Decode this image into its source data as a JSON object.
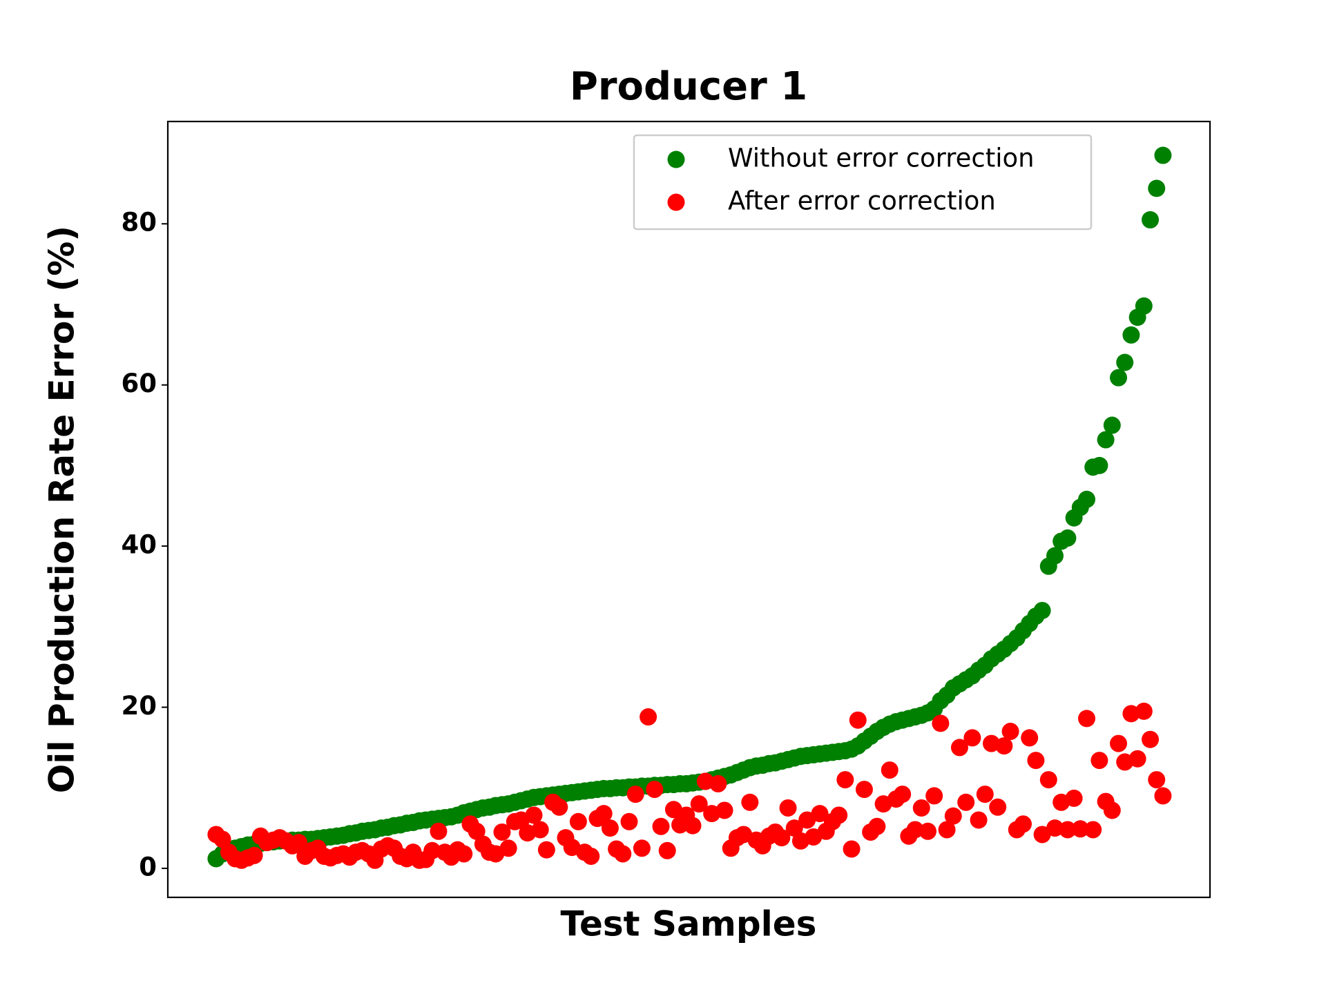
{
  "chart_data": {
    "type": "scatter",
    "title": "Producer 1",
    "x_label": "Test Samples",
    "y_label": "Oil Production Rate Error (%)",
    "x": [
      0,
      1,
      2,
      3,
      4,
      5,
      6,
      7,
      8,
      9,
      10,
      11,
      12,
      13,
      14,
      15,
      16,
      17,
      18,
      19,
      20,
      21,
      22,
      23,
      24,
      25,
      26,
      27,
      28,
      29,
      30,
      31,
      32,
      33,
      34,
      35,
      36,
      37,
      38,
      39,
      40,
      41,
      42,
      43,
      44,
      45,
      46,
      47,
      48,
      49,
      50,
      51,
      52,
      53,
      54,
      55,
      56,
      57,
      58,
      59,
      60,
      61,
      62,
      63,
      64,
      65,
      66,
      67,
      68,
      69,
      70,
      71,
      72,
      73,
      74,
      75,
      76,
      77,
      78,
      79,
      80,
      81,
      82,
      83,
      84,
      85,
      86,
      87,
      88,
      89,
      90,
      91,
      92,
      93,
      94,
      95,
      96,
      97,
      98,
      99,
      100,
      101,
      102,
      103,
      104,
      105,
      106,
      107,
      108,
      109,
      110,
      111,
      112,
      113,
      114,
      115,
      116,
      117,
      118,
      119,
      120,
      121,
      122,
      123,
      124,
      125,
      126,
      127,
      128,
      129,
      130,
      131,
      132,
      133,
      134,
      135,
      136,
      137,
      138,
      139,
      140,
      141,
      142,
      143,
      144,
      145,
      146,
      147,
      148,
      149
    ],
    "series": [
      {
        "name": "Without error correction",
        "color": "#008000",
        "values": [
          1.2,
          1.8,
          2.2,
          2.5,
          2.7,
          2.9,
          3.0,
          3.1,
          3.2,
          3.3,
          3.4,
          3.4,
          3.5,
          3.5,
          3.6,
          3.6,
          3.7,
          3.8,
          3.9,
          4.0,
          4.1,
          4.3,
          4.4,
          4.6,
          4.7,
          4.8,
          5.0,
          5.1,
          5.3,
          5.4,
          5.6,
          5.7,
          5.9,
          6.0,
          6.1,
          6.2,
          6.3,
          6.4,
          6.6,
          6.9,
          7.1,
          7.3,
          7.5,
          7.6,
          7.8,
          7.9,
          8.0,
          8.2,
          8.4,
          8.6,
          8.8,
          8.9,
          9.0,
          9.1,
          9.2,
          9.3,
          9.4,
          9.5,
          9.6,
          9.7,
          9.8,
          9.9,
          9.9,
          10.0,
          10.0,
          10.1,
          10.1,
          10.2,
          10.2,
          10.3,
          10.3,
          10.4,
          10.4,
          10.5,
          10.5,
          10.6,
          10.7,
          10.8,
          11.0,
          11.2,
          11.4,
          11.6,
          11.9,
          12.2,
          12.5,
          12.7,
          12.8,
          13.0,
          13.1,
          13.3,
          13.5,
          13.7,
          13.9,
          14.0,
          14.1,
          14.2,
          14.3,
          14.4,
          14.5,
          14.6,
          14.8,
          15.2,
          15.8,
          16.4,
          17.0,
          17.5,
          17.9,
          18.2,
          18.4,
          18.6,
          18.8,
          19.0,
          19.3,
          19.8,
          20.8,
          21.5,
          22.4,
          22.9,
          23.4,
          23.9,
          24.6,
          25.2,
          26.0,
          26.6,
          27.2,
          27.9,
          28.6,
          29.5,
          30.4,
          31.3,
          32.0,
          37.5,
          38.8,
          40.6,
          41.0,
          43.5,
          44.8,
          45.8,
          49.8,
          50.0,
          53.2,
          55.0,
          60.9,
          62.8,
          66.2,
          68.4,
          69.8,
          80.5,
          84.4,
          88.5
        ]
      },
      {
        "name": "After error correction",
        "color": "#ff0000",
        "values": [
          4.2,
          3.6,
          2.0,
          1.2,
          1.0,
          1.3,
          1.6,
          4.0,
          3.2,
          3.5,
          3.8,
          3.4,
          2.8,
          3.2,
          1.5,
          2.2,
          2.5,
          1.5,
          1.3,
          1.6,
          1.8,
          1.4,
          2.0,
          2.2,
          1.8,
          1.0,
          2.4,
          2.8,
          2.5,
          1.5,
          1.2,
          2.0,
          1.0,
          1.1,
          2.2,
          4.6,
          2.0,
          1.4,
          2.3,
          1.8,
          5.5,
          4.6,
          3.0,
          2.0,
          1.8,
          4.5,
          2.5,
          5.8,
          6.0,
          4.4,
          6.6,
          4.8,
          2.3,
          8.2,
          7.6,
          3.8,
          2.6,
          5.8,
          2.0,
          1.5,
          6.2,
          6.8,
          5.0,
          2.4,
          1.8,
          5.8,
          9.2,
          2.5,
          18.8,
          9.8,
          5.2,
          2.2,
          7.3,
          5.4,
          6.6,
          5.3,
          8.0,
          10.8,
          6.8,
          10.5,
          7.2,
          2.5,
          3.8,
          4.2,
          8.2,
          3.5,
          2.8,
          4.0,
          4.5,
          3.8,
          7.5,
          5.0,
          3.4,
          6.0,
          3.9,
          6.8,
          4.6,
          5.8,
          6.6,
          11.0,
          2.4,
          18.4,
          9.8,
          4.5,
          5.2,
          8.0,
          12.2,
          8.6,
          9.2,
          4.0,
          4.8,
          7.5,
          4.6,
          9.0,
          18.0,
          4.8,
          6.5,
          15.0,
          8.2,
          16.2,
          6.0,
          9.2,
          15.5,
          7.6,
          15.2,
          17.0,
          4.8,
          5.5,
          16.2,
          13.4,
          4.2,
          11.0,
          5.0,
          8.2,
          4.8,
          8.7,
          4.9,
          18.6,
          4.8,
          13.4,
          8.3,
          7.2,
          15.5,
          13.2,
          19.2,
          13.6,
          19.5,
          16.0,
          11.0,
          9.0
        ]
      }
    ],
    "xlim": [
      -7.6,
      156.4
    ],
    "ylim": [
      -3.6,
      92.7
    ],
    "yticks": [
      0,
      20,
      40,
      60,
      80
    ],
    "legend": "upper right"
  }
}
